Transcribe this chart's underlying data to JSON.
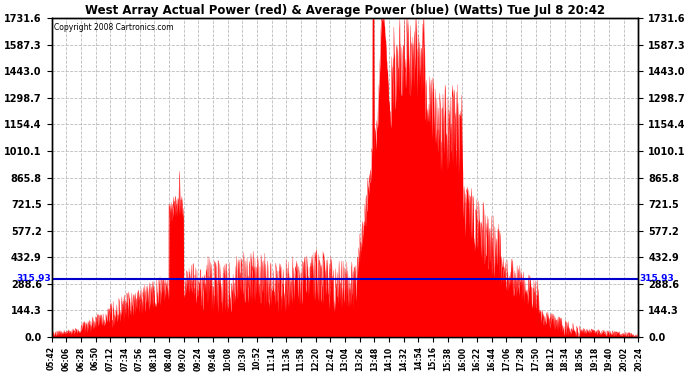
{
  "title": "West Array Actual Power (red) & Average Power (blue) (Watts) Tue Jul 8 20:42",
  "copyright": "Copyright 2008 Cartronics.com",
  "y_max": 1731.6,
  "y_min": 0.0,
  "y_ticks": [
    0.0,
    144.3,
    288.6,
    432.9,
    577.2,
    721.5,
    865.8,
    1010.1,
    1154.4,
    1298.7,
    1443.0,
    1587.3,
    1731.6
  ],
  "average_power": 315.93,
  "average_label": "315.93",
  "background_color": "#ffffff",
  "plot_bg_color": "#ffffff",
  "grid_color": "#bbbbbb",
  "fill_color": "#ff0000",
  "line_color": "#0000cc",
  "x_tick_labels": [
    "05:42",
    "06:06",
    "06:28",
    "06:50",
    "07:12",
    "07:34",
    "07:56",
    "08:18",
    "08:40",
    "09:02",
    "09:24",
    "09:46",
    "10:08",
    "10:30",
    "10:52",
    "11:14",
    "11:36",
    "11:58",
    "12:20",
    "12:42",
    "13:04",
    "13:26",
    "13:48",
    "14:10",
    "14:32",
    "14:54",
    "15:16",
    "15:38",
    "16:00",
    "16:22",
    "16:44",
    "17:06",
    "17:28",
    "17:50",
    "18:12",
    "18:34",
    "18:56",
    "19:18",
    "19:40",
    "20:02",
    "20:24"
  ],
  "num_points": 1640,
  "figsize": [
    6.9,
    3.75
  ],
  "dpi": 100
}
